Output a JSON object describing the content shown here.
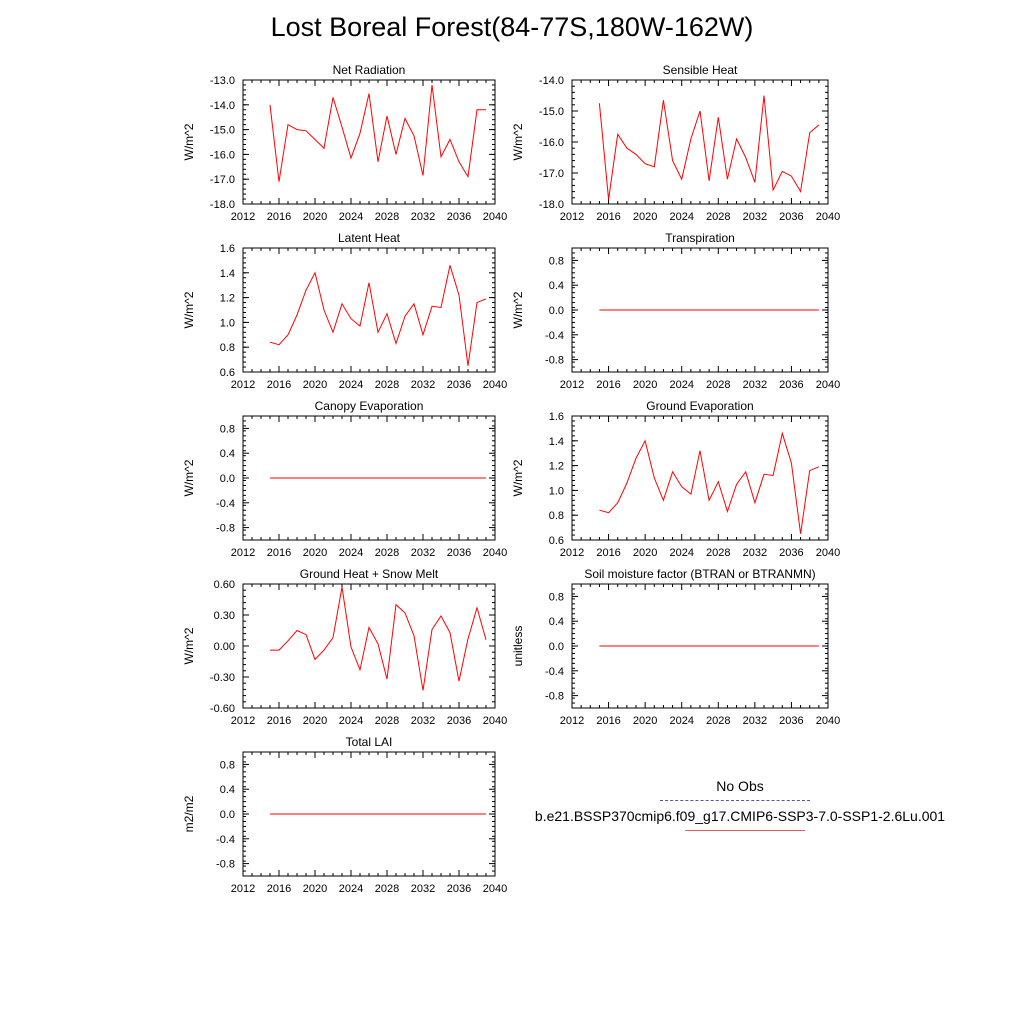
{
  "title": "Lost Boreal Forest(84-77S,180W-162W)",
  "colors": {
    "series": "#ff0000",
    "axis": "#000000",
    "obs": "#5555aa"
  },
  "legend": {
    "obs_label": "No Obs",
    "case_label": "b.e21.BSSP370cmip6.f09_g17.CMIP6-SSP3-7.0-SSP1-2.6Lu.001"
  },
  "chart_data": [
    {
      "type": "line",
      "title": "Net Radiation",
      "ylabel": "W/m^2",
      "xlim": [
        2012,
        2040
      ],
      "ylim": [
        -18,
        -13
      ],
      "xticks": [
        "2012",
        "2016",
        "2020",
        "2024",
        "2028",
        "2032",
        "2036",
        "2040"
      ],
      "yticks": [
        "-18.0",
        "-17.0",
        "-16.0",
        "-15.0",
        "-14.0",
        "-13.0"
      ],
      "x": [
        2015,
        2016,
        2017,
        2018,
        2019,
        2020,
        2021,
        2022,
        2023,
        2024,
        2025,
        2026,
        2027,
        2028,
        2029,
        2030,
        2031,
        2032,
        2033,
        2034,
        2035,
        2036,
        2037,
        2038,
        2039
      ],
      "values": [
        -14.0,
        -17.1,
        -14.8,
        -15.0,
        -15.05,
        -15.4,
        -15.75,
        -13.7,
        -14.9,
        -16.15,
        -15.15,
        -13.55,
        -16.3,
        -14.45,
        -16.0,
        -14.55,
        -15.25,
        -16.85,
        -13.2,
        -16.1,
        -15.4,
        -16.3,
        -16.9,
        -14.2,
        -14.2
      ]
    },
    {
      "type": "line",
      "title": "Sensible Heat",
      "ylabel": "W/m^2",
      "xlim": [
        2012,
        2040
      ],
      "ylim": [
        -18,
        -14
      ],
      "xticks": [
        "2012",
        "2016",
        "2020",
        "2024",
        "2028",
        "2032",
        "2036",
        "2040"
      ],
      "yticks": [
        "-18.0",
        "-17.0",
        "-16.0",
        "-15.0",
        "-14.0"
      ],
      "x": [
        2015,
        2016,
        2017,
        2018,
        2019,
        2020,
        2021,
        2022,
        2023,
        2024,
        2025,
        2026,
        2027,
        2028,
        2029,
        2030,
        2031,
        2032,
        2033,
        2034,
        2035,
        2036,
        2037,
        2038,
        2039
      ],
      "values": [
        -14.75,
        -17.85,
        -15.75,
        -16.2,
        -16.4,
        -16.7,
        -16.8,
        -14.65,
        -16.6,
        -17.2,
        -15.9,
        -15.0,
        -17.25,
        -15.2,
        -17.2,
        -15.9,
        -16.5,
        -17.3,
        -14.5,
        -17.55,
        -16.95,
        -17.1,
        -17.6,
        -15.7,
        -15.45
      ]
    },
    {
      "type": "line",
      "title": "Latent Heat",
      "ylabel": "W/m^2",
      "xlim": [
        2012,
        2040
      ],
      "ylim": [
        0.6,
        1.6
      ],
      "xticks": [
        "2012",
        "2016",
        "2020",
        "2024",
        "2028",
        "2032",
        "2036",
        "2040"
      ],
      "yticks": [
        "0.6",
        "0.8",
        "1.0",
        "1.2",
        "1.4",
        "1.6"
      ],
      "x": [
        2015,
        2016,
        2017,
        2018,
        2019,
        2020,
        2021,
        2022,
        2023,
        2024,
        2025,
        2026,
        2027,
        2028,
        2029,
        2030,
        2031,
        2032,
        2033,
        2034,
        2035,
        2036,
        2037,
        2038,
        2039
      ],
      "values": [
        0.84,
        0.82,
        0.9,
        1.06,
        1.26,
        1.4,
        1.1,
        0.92,
        1.15,
        1.03,
        0.97,
        1.32,
        0.92,
        1.07,
        0.83,
        1.05,
        1.15,
        0.9,
        1.13,
        1.12,
        1.46,
        1.22,
        0.65,
        1.16,
        1.19
      ]
    },
    {
      "type": "line",
      "title": "Transpiration",
      "ylabel": "W/m^2",
      "xlim": [
        2012,
        2040
      ],
      "ylim": [
        -1.0,
        1.0
      ],
      "xticks": [
        "2012",
        "2016",
        "2020",
        "2024",
        "2028",
        "2032",
        "2036",
        "2040"
      ],
      "yticks": [
        "-0.8",
        "-0.4",
        "0.0",
        "0.4",
        "0.8"
      ],
      "x": [
        2015,
        2039
      ],
      "values": [
        0.0,
        0.0
      ]
    },
    {
      "type": "line",
      "title": "Canopy Evaporation",
      "ylabel": "W/m^2",
      "xlim": [
        2012,
        2040
      ],
      "ylim": [
        -1.0,
        1.0
      ],
      "xticks": [
        "2012",
        "2016",
        "2020",
        "2024",
        "2028",
        "2032",
        "2036",
        "2040"
      ],
      "yticks": [
        "-0.8",
        "-0.4",
        "0.0",
        "0.4",
        "0.8"
      ],
      "x": [
        2015,
        2039
      ],
      "values": [
        0.0,
        0.0
      ]
    },
    {
      "type": "line",
      "title": "Ground Evaporation",
      "ylabel": "W/m^2",
      "xlim": [
        2012,
        2040
      ],
      "ylim": [
        0.6,
        1.6
      ],
      "xticks": [
        "2012",
        "2016",
        "2020",
        "2024",
        "2028",
        "2032",
        "2036",
        "2040"
      ],
      "yticks": [
        "0.6",
        "0.8",
        "1.0",
        "1.2",
        "1.4",
        "1.6"
      ],
      "x": [
        2015,
        2016,
        2017,
        2018,
        2019,
        2020,
        2021,
        2022,
        2023,
        2024,
        2025,
        2026,
        2027,
        2028,
        2029,
        2030,
        2031,
        2032,
        2033,
        2034,
        2035,
        2036,
        2037,
        2038,
        2039
      ],
      "values": [
        0.84,
        0.82,
        0.9,
        1.06,
        1.26,
        1.4,
        1.1,
        0.92,
        1.15,
        1.03,
        0.97,
        1.32,
        0.92,
        1.07,
        0.83,
        1.05,
        1.15,
        0.9,
        1.13,
        1.12,
        1.46,
        1.22,
        0.65,
        1.16,
        1.19
      ]
    },
    {
      "type": "line",
      "title": "Ground Heat + Snow Melt",
      "ylabel": "W/m^2",
      "xlim": [
        2012,
        2040
      ],
      "ylim": [
        -0.6,
        0.6
      ],
      "xticks": [
        "2012",
        "2016",
        "2020",
        "2024",
        "2028",
        "2032",
        "2036",
        "2040"
      ],
      "yticks": [
        "-0.60",
        "-0.30",
        "0.00",
        "0.30",
        "0.60"
      ],
      "x": [
        2015,
        2016,
        2017,
        2018,
        2019,
        2020,
        2021,
        2022,
        2023,
        2024,
        2025,
        2026,
        2027,
        2028,
        2029,
        2030,
        2031,
        2032,
        2033,
        2034,
        2035,
        2036,
        2037,
        2038,
        2039
      ],
      "values": [
        -0.04,
        -0.04,
        0.05,
        0.15,
        0.11,
        -0.13,
        -0.04,
        0.08,
        0.57,
        -0.01,
        -0.23,
        0.18,
        0.02,
        -0.32,
        0.4,
        0.32,
        0.1,
        -0.43,
        0.16,
        0.29,
        0.13,
        -0.34,
        0.07,
        0.37,
        0.06
      ]
    },
    {
      "type": "line",
      "title": "Soil moisture factor (BTRAN or BTRANMN)",
      "ylabel": "unitless",
      "xlim": [
        2012,
        2040
      ],
      "ylim": [
        -1.0,
        1.0
      ],
      "xticks": [
        "2012",
        "2016",
        "2020",
        "2024",
        "2028",
        "2032",
        "2036",
        "2040"
      ],
      "yticks": [
        "-0.8",
        "-0.4",
        "0.0",
        "0.4",
        "0.8"
      ],
      "x": [
        2015,
        2039
      ],
      "values": [
        0.0,
        0.0
      ]
    },
    {
      "type": "line",
      "title": "Total LAI",
      "ylabel": "m2/m2",
      "xlim": [
        2012,
        2040
      ],
      "ylim": [
        -1.0,
        1.0
      ],
      "xticks": [
        "2012",
        "2016",
        "2020",
        "2024",
        "2028",
        "2032",
        "2036",
        "2040"
      ],
      "yticks": [
        "-0.8",
        "-0.4",
        "0.0",
        "0.4",
        "0.8"
      ],
      "x": [
        2015,
        2039
      ],
      "values": [
        0.0,
        0.0
      ]
    }
  ]
}
